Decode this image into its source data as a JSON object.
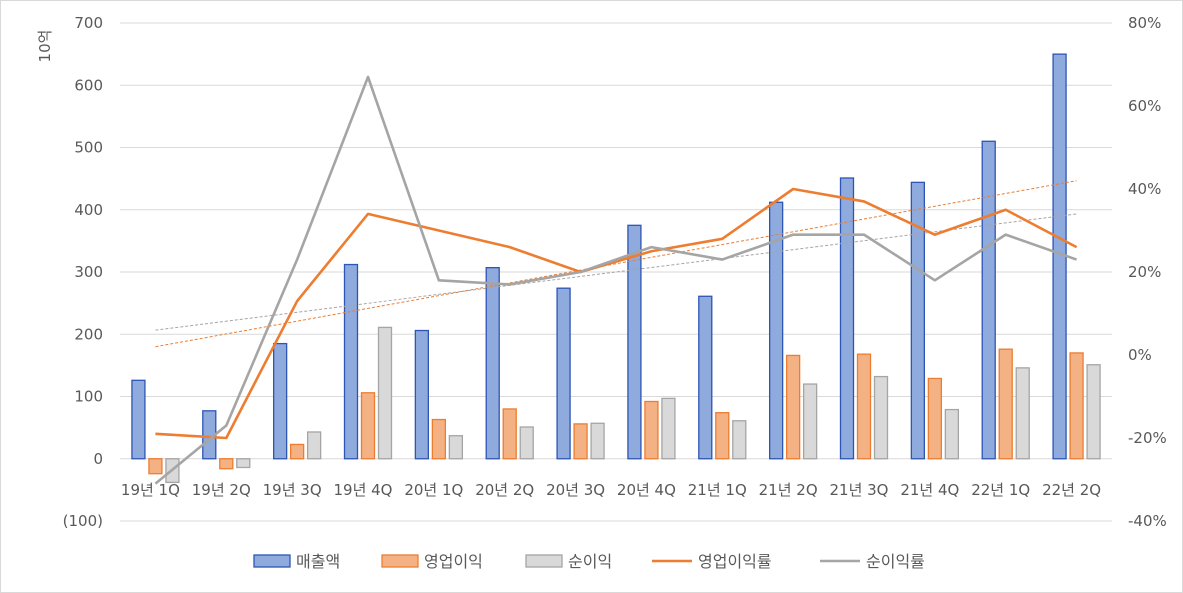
{
  "chart_data": {
    "type": "bar",
    "unit_label": "10억",
    "categories": [
      "19년 1Q",
      "19년 2Q",
      "19년 3Q",
      "19년 4Q",
      "20년 1Q",
      "20년 2Q",
      "20년 3Q",
      "20년 4Q",
      "21년 1Q",
      "21년 2Q",
      "21년 3Q",
      "21년 4Q",
      "22년 1Q",
      "22년 2Q"
    ],
    "left_axis": {
      "ylim": [
        -100,
        700
      ],
      "ticks": [
        {
          "value": 700,
          "label": "700"
        },
        {
          "value": 600,
          "label": "600"
        },
        {
          "value": 500,
          "label": "500"
        },
        {
          "value": 400,
          "label": "400"
        },
        {
          "value": 300,
          "label": "300"
        },
        {
          "value": 200,
          "label": "200"
        },
        {
          "value": 100,
          "label": "100"
        },
        {
          "value": 0,
          "label": "0"
        },
        {
          "value": -100,
          "label": "(100)",
          "color": "#ff0000"
        }
      ]
    },
    "right_axis": {
      "ylim": [
        -40,
        80
      ],
      "ticks": [
        {
          "value": 80,
          "label": "80%"
        },
        {
          "value": 60,
          "label": "60%"
        },
        {
          "value": 40,
          "label": "40%"
        },
        {
          "value": 20,
          "label": "20%"
        },
        {
          "value": 0,
          "label": "0%"
        },
        {
          "value": -20,
          "label": "-20%"
        },
        {
          "value": -40,
          "label": "-40%"
        }
      ]
    },
    "bar_series": [
      {
        "name": "매출액",
        "color": "#8faadc",
        "stroke": "#2f55b4",
        "values": [
          126,
          77,
          185,
          312,
          206,
          307,
          274,
          375,
          261,
          412,
          451,
          444,
          510,
          650
        ]
      },
      {
        "name": "영업이익",
        "color": "#f4b183",
        "stroke": "#ed7d31",
        "values": [
          -24,
          -16,
          23,
          106,
          63,
          80,
          56,
          92,
          74,
          166,
          168,
          129,
          176,
          170
        ]
      },
      {
        "name": "순이익",
        "color": "#d9d9d9",
        "stroke": "#a5a5a5",
        "values": [
          -38,
          -14,
          43,
          211,
          37,
          51,
          57,
          97,
          61,
          120,
          132,
          79,
          146,
          151
        ]
      }
    ],
    "line_series": [
      {
        "name": "영업이익률",
        "color": "#ed7d31",
        "axis": "right",
        "values": [
          -19,
          -20,
          13,
          34,
          30,
          26,
          20,
          25,
          28,
          40,
          37,
          29,
          35,
          26
        ]
      },
      {
        "name": "순이익률",
        "color": "#a5a5a5",
        "axis": "right",
        "values": [
          -31,
          -17,
          23,
          67,
          18,
          17,
          20,
          26,
          23,
          29,
          29,
          18,
          29,
          23
        ]
      }
    ],
    "trendlines": [
      {
        "series": "영업이익률",
        "color": "#ed7d31",
        "style": "dotted",
        "from": [
          1,
          2
        ],
        "to": [
          14,
          42
        ]
      },
      {
        "series": "순이익률",
        "color": "#a5a5a5",
        "style": "dotted",
        "from": [
          1,
          6
        ],
        "to": [
          14,
          34
        ]
      }
    ],
    "legend_position": "bottom",
    "gridlines": true
  }
}
